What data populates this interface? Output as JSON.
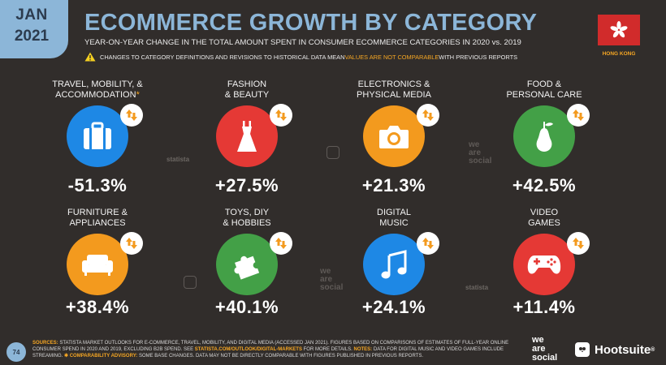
{
  "header": {
    "month": "JAN",
    "year": "2021",
    "title": "ECOMMERCE GROWTH BY CATEGORY",
    "subtitle": "YEAR-ON-YEAR CHANGE IN THE TOTAL AMOUNT SPENT IN CONSUMER ECOMMERCE CATEGORIES IN 2020 vs. 2019",
    "warning_a": "CHANGES TO CATEGORY DEFINITIONS AND REVISIONS TO HISTORICAL DATA MEAN ",
    "warning_b": "VALUES ARE NOT COMPARABLE",
    "warning_c": " WITH PREVIOUS REPORTS",
    "country": "HONG KONG"
  },
  "categories": [
    {
      "label": "TRAVEL, MOBILITY, &\nACCOMMODATION",
      "asterisk": "*",
      "value": "-51.3%",
      "icon": "luggage-icon",
      "color": "#1e88e5"
    },
    {
      "label": "FASHION\n& BEAUTY",
      "asterisk": "",
      "value": "+27.5%",
      "icon": "dress-icon",
      "color": "#e53935"
    },
    {
      "label": "ELECTRONICS &\nPHYSICAL MEDIA",
      "asterisk": "",
      "value": "+21.3%",
      "icon": "camera-icon",
      "color": "#f39a1e"
    },
    {
      "label": "FOOD &\nPERSONAL CARE",
      "asterisk": "",
      "value": "+42.5%",
      "icon": "pear-icon",
      "color": "#43a047"
    },
    {
      "label": "FURNITURE &\nAPPLIANCES",
      "asterisk": "",
      "value": "+38.4%",
      "icon": "sofa-icon",
      "color": "#f39a1e"
    },
    {
      "label": "TOYS, DIY\n& HOBBIES",
      "asterisk": "",
      "value": "+40.1%",
      "icon": "puzzle-icon",
      "color": "#43a047"
    },
    {
      "label": "DIGITAL\nMUSIC",
      "asterisk": "",
      "value": "+24.1%",
      "icon": "music-note-icon",
      "color": "#1e88e5"
    },
    {
      "label": "VIDEO\nGAMES",
      "asterisk": "",
      "value": "+11.4%",
      "icon": "gamepad-icon",
      "color": "#e53935"
    }
  ],
  "watermarks": {
    "statista": "statista",
    "we": "we",
    "are": "are",
    "social": "social"
  },
  "footer": {
    "page": "74",
    "sources_key": "SOURCES:",
    "sources_1": " STATISTA MARKET OUTLOOKS FOR E-COMMERCE, TRAVEL, MOBILITY, AND DIGITAL MEDIA (ACCESSED JAN 2021). FIGURES BASED ON COMPARISONS OF ESTIMATES OF FULL-YEAR ONLINE CONSUMER SPEND IN 2020 AND 2019, EXCLUDING B2B SPEND. SEE ",
    "sources_link": "STATISTA.COM/OUTLOOK/DIGITAL-MARKETS",
    "sources_2": " FOR MORE DETAILS. ",
    "notes_key": "NOTES:",
    "notes": " DATA FOR DIGITAL MUSIC AND VIDEO GAMES INCLUDE STREAMING. ",
    "advisory_key": "✱ COMPARABILITY ADVISORY:",
    "advisory": " SOME BASE CHANGES. DATA MAY NOT BE DIRECTLY COMPARABLE WITH FIGURES PUBLISHED IN PREVIOUS REPORTS.",
    "brand_we": "we",
    "brand_are": "are",
    "brand_social": "social",
    "brand_hootsuite": "Hootsuite",
    "brand_reg": "®"
  }
}
